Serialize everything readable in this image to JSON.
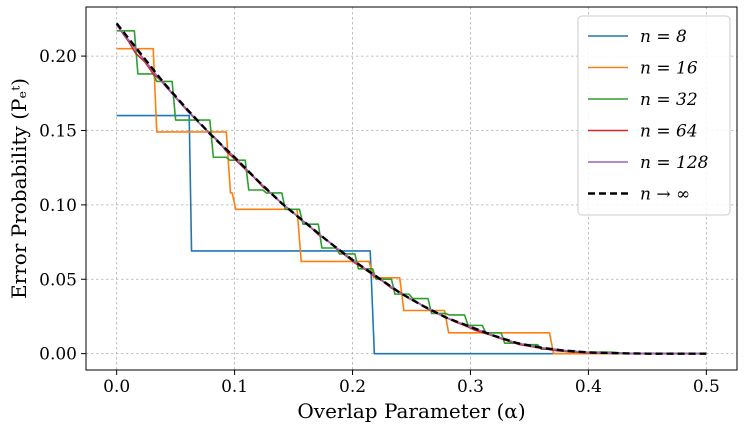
{
  "chart_data": {
    "type": "line",
    "title": "",
    "xlabel": "Overlap Parameter (α)",
    "ylabel": "Error Probability (Pₑᵗ)",
    "xlim": [
      -0.026,
      0.526
    ],
    "ylim": [
      -0.011,
      0.233
    ],
    "grid": true,
    "legend_position": "top-right",
    "x_ticks": [
      {
        "value": 0.0,
        "label": "0.0"
      },
      {
        "value": 0.1,
        "label": "0.1"
      },
      {
        "value": 0.2,
        "label": "0.2"
      },
      {
        "value": 0.3,
        "label": "0.3"
      },
      {
        "value": 0.4,
        "label": "0.4"
      },
      {
        "value": 0.5,
        "label": "0.5"
      }
    ],
    "y_ticks": [
      {
        "value": 0.0,
        "label": "0.00"
      },
      {
        "value": 0.05,
        "label": "0.05"
      },
      {
        "value": 0.1,
        "label": "0.10"
      },
      {
        "value": 0.15,
        "label": "0.15"
      },
      {
        "value": 0.2,
        "label": "0.20"
      }
    ],
    "series": [
      {
        "name": "n = 8",
        "color": "#1f77b4",
        "dashed": false,
        "width": 1.6,
        "points": [
          [
            0,
            0.16
          ],
          [
            0.0615,
            0.16
          ],
          [
            0.0635,
            0.069
          ],
          [
            0.215,
            0.069
          ],
          [
            0.2185,
            0.0
          ],
          [
            0.5,
            0.0
          ]
        ]
      },
      {
        "name": "n = 16",
        "color": "#ff7f0e",
        "dashed": false,
        "width": 1.6,
        "points": [
          [
            0,
            0.205
          ],
          [
            0.031,
            0.205
          ],
          [
            0.034,
            0.149
          ],
          [
            0.093,
            0.149
          ],
          [
            0.0965,
            0.108
          ],
          [
            0.098,
            0.108
          ],
          [
            0.101,
            0.097
          ],
          [
            0.153,
            0.097
          ],
          [
            0.1565,
            0.062
          ],
          [
            0.214,
            0.062
          ],
          [
            0.218,
            0.051
          ],
          [
            0.24,
            0.051
          ],
          [
            0.2435,
            0.029
          ],
          [
            0.278,
            0.029
          ],
          [
            0.2815,
            0.014
          ],
          [
            0.367,
            0.014
          ],
          [
            0.3705,
            0.0
          ],
          [
            0.5,
            0.0
          ]
        ]
      },
      {
        "name": "n = 32",
        "color": "#2ca02c",
        "dashed": false,
        "width": 1.6,
        "points": [
          [
            0,
            0.217
          ],
          [
            0.015,
            0.217
          ],
          [
            0.018,
            0.188
          ],
          [
            0.031,
            0.188
          ],
          [
            0.034,
            0.183
          ],
          [
            0.047,
            0.183
          ],
          [
            0.05,
            0.157
          ],
          [
            0.062,
            0.157
          ],
          [
            0.065,
            0.157
          ],
          [
            0.079,
            0.157
          ],
          [
            0.082,
            0.132
          ],
          [
            0.093,
            0.132
          ],
          [
            0.096,
            0.13
          ],
          [
            0.109,
            0.13
          ],
          [
            0.112,
            0.11
          ],
          [
            0.124,
            0.11
          ],
          [
            0.127,
            0.108
          ],
          [
            0.14,
            0.108
          ],
          [
            0.143,
            0.097
          ],
          [
            0.155,
            0.097
          ],
          [
            0.158,
            0.087
          ],
          [
            0.171,
            0.087
          ],
          [
            0.174,
            0.071
          ],
          [
            0.186,
            0.071
          ],
          [
            0.189,
            0.067
          ],
          [
            0.202,
            0.067
          ],
          [
            0.205,
            0.057
          ],
          [
            0.217,
            0.057
          ],
          [
            0.22,
            0.05
          ],
          [
            0.233,
            0.05
          ],
          [
            0.236,
            0.04
          ],
          [
            0.248,
            0.04
          ],
          [
            0.251,
            0.037
          ],
          [
            0.264,
            0.037
          ],
          [
            0.267,
            0.027
          ],
          [
            0.279,
            0.027
          ],
          [
            0.282,
            0.026
          ],
          [
            0.295,
            0.026
          ],
          [
            0.298,
            0.019
          ],
          [
            0.31,
            0.019
          ],
          [
            0.313,
            0.014
          ],
          [
            0.326,
            0.014
          ],
          [
            0.329,
            0.007
          ],
          [
            0.341,
            0.007
          ],
          [
            0.344,
            0.006
          ],
          [
            0.357,
            0.006
          ],
          [
            0.36,
            0.003
          ],
          [
            0.372,
            0.003
          ],
          [
            0.375,
            0.002
          ],
          [
            0.388,
            0.002
          ],
          [
            0.391,
            0.001
          ],
          [
            0.42,
            0.001
          ],
          [
            0.435,
            0.0
          ],
          [
            0.5,
            0.0
          ]
        ]
      },
      {
        "name": "n = 64",
        "color": "#d62728",
        "dashed": false,
        "width": 1.6,
        "points": [
          [
            0,
            0.221
          ],
          [
            0.01,
            0.21
          ],
          [
            0.016,
            0.202
          ],
          [
            0.024,
            0.196
          ],
          [
            0.031,
            0.188
          ],
          [
            0.04,
            0.182
          ],
          [
            0.047,
            0.175
          ],
          [
            0.055,
            0.168
          ],
          [
            0.062,
            0.162
          ],
          [
            0.07,
            0.155
          ],
          [
            0.078,
            0.149
          ],
          [
            0.086,
            0.143
          ],
          [
            0.093,
            0.136
          ],
          [
            0.101,
            0.13
          ],
          [
            0.109,
            0.124
          ],
          [
            0.117,
            0.118
          ],
          [
            0.124,
            0.112
          ],
          [
            0.132,
            0.107
          ],
          [
            0.14,
            0.101
          ],
          [
            0.148,
            0.096
          ],
          [
            0.155,
            0.091
          ],
          [
            0.163,
            0.086
          ],
          [
            0.171,
            0.08
          ],
          [
            0.179,
            0.076
          ],
          [
            0.186,
            0.071
          ],
          [
            0.194,
            0.066
          ],
          [
            0.202,
            0.061
          ],
          [
            0.21,
            0.057
          ],
          [
            0.217,
            0.053
          ],
          [
            0.225,
            0.049
          ],
          [
            0.233,
            0.044
          ],
          [
            0.241,
            0.041
          ],
          [
            0.248,
            0.037
          ],
          [
            0.256,
            0.034
          ],
          [
            0.264,
            0.03
          ],
          [
            0.272,
            0.027
          ],
          [
            0.28,
            0.024
          ],
          [
            0.288,
            0.021
          ],
          [
            0.295,
            0.019
          ],
          [
            0.303,
            0.016
          ],
          [
            0.311,
            0.014
          ],
          [
            0.319,
            0.012
          ],
          [
            0.326,
            0.01
          ],
          [
            0.334,
            0.008
          ],
          [
            0.342,
            0.006
          ],
          [
            0.35,
            0.005
          ],
          [
            0.357,
            0.004
          ],
          [
            0.365,
            0.003
          ],
          [
            0.373,
            0.002
          ],
          [
            0.381,
            0.0015
          ],
          [
            0.39,
            0.001
          ],
          [
            0.4,
            0.0005
          ],
          [
            0.42,
            0.0002
          ],
          [
            0.5,
            0.0
          ]
        ]
      },
      {
        "name": "n = 128",
        "color": "#9467bd",
        "dashed": false,
        "width": 1.6,
        "points": [
          [
            0,
            0.221
          ],
          [
            0.02,
            0.201
          ],
          [
            0.04,
            0.181
          ],
          [
            0.06,
            0.163
          ],
          [
            0.08,
            0.147
          ],
          [
            0.1,
            0.132
          ],
          [
            0.12,
            0.116
          ],
          [
            0.14,
            0.101
          ],
          [
            0.16,
            0.088
          ],
          [
            0.18,
            0.075
          ],
          [
            0.2,
            0.063
          ],
          [
            0.22,
            0.052
          ],
          [
            0.24,
            0.041
          ],
          [
            0.26,
            0.032
          ],
          [
            0.28,
            0.024
          ],
          [
            0.3,
            0.018
          ],
          [
            0.32,
            0.012
          ],
          [
            0.34,
            0.007
          ],
          [
            0.36,
            0.004
          ],
          [
            0.38,
            0.002
          ],
          [
            0.4,
            0.0008
          ],
          [
            0.43,
            0.0002
          ],
          [
            0.5,
            0.0
          ]
        ]
      },
      {
        "name": "n → ∞",
        "color": "#000000",
        "dashed": true,
        "width": 2.4,
        "points": [
          [
            0,
            0.222
          ],
          [
            0.02,
            0.202
          ],
          [
            0.04,
            0.182
          ],
          [
            0.06,
            0.164
          ],
          [
            0.08,
            0.147
          ],
          [
            0.1,
            0.132
          ],
          [
            0.12,
            0.116
          ],
          [
            0.14,
            0.101
          ],
          [
            0.16,
            0.088
          ],
          [
            0.18,
            0.075
          ],
          [
            0.2,
            0.063
          ],
          [
            0.22,
            0.052
          ],
          [
            0.24,
            0.041
          ],
          [
            0.26,
            0.032
          ],
          [
            0.28,
            0.024
          ],
          [
            0.3,
            0.018
          ],
          [
            0.32,
            0.012
          ],
          [
            0.34,
            0.007
          ],
          [
            0.36,
            0.004
          ],
          [
            0.38,
            0.002
          ],
          [
            0.4,
            0.0008
          ],
          [
            0.43,
            0.0002
          ],
          [
            0.45,
            0.0
          ],
          [
            0.5,
            0.0
          ]
        ]
      }
    ]
  }
}
